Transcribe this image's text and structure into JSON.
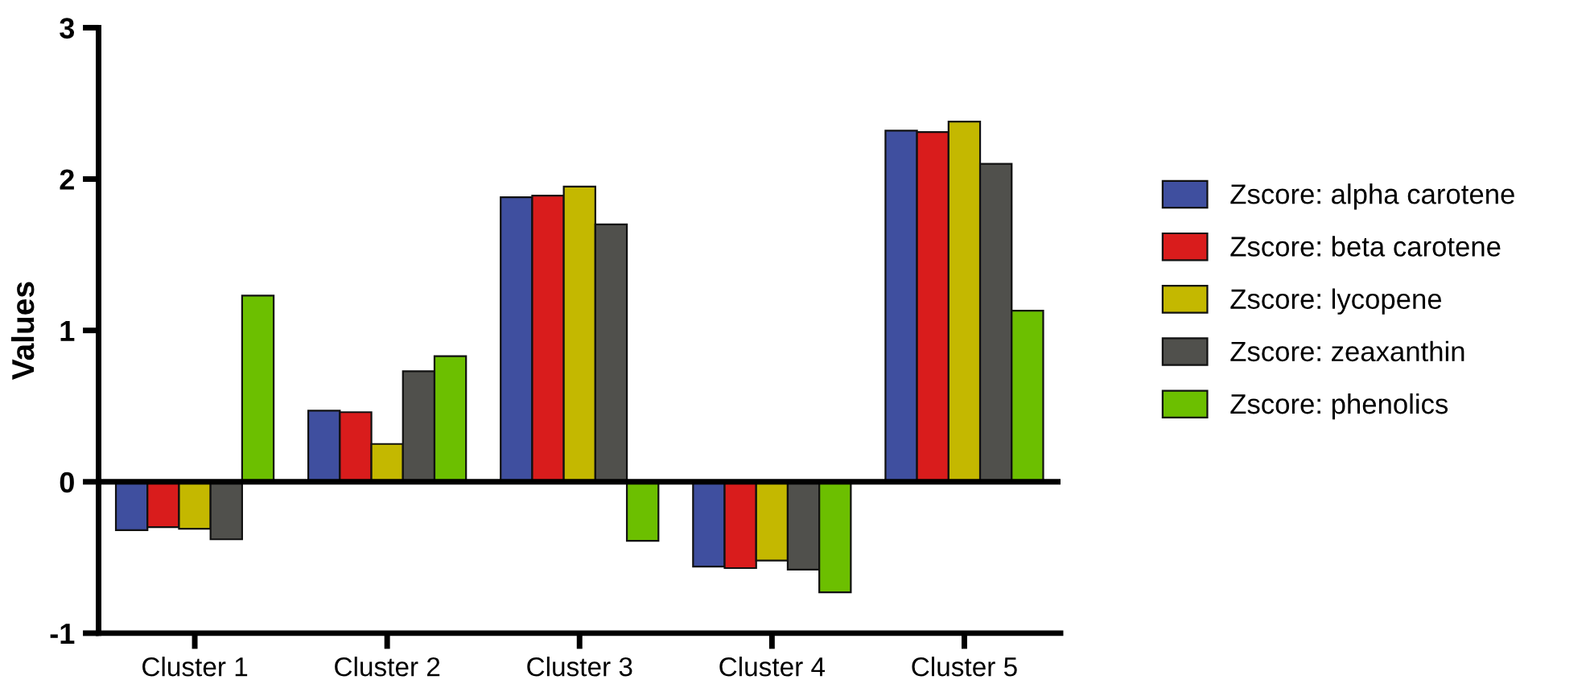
{
  "chart_data": {
    "type": "bar",
    "ylabel": "Values",
    "categories": [
      "Cluster 1",
      "Cluster 2",
      "Cluster 3",
      "Cluster 4",
      "Cluster 5"
    ],
    "series": [
      {
        "name": "Zscore: alpha carotene",
        "color": "#3f4f9f",
        "values": [
          -0.32,
          0.47,
          1.88,
          -0.56,
          2.32
        ]
      },
      {
        "name": "Zscore: beta carotene",
        "color": "#d91c1c",
        "values": [
          -0.3,
          0.46,
          1.89,
          -0.57,
          2.31
        ]
      },
      {
        "name": "Zscore: lycopene",
        "color": "#c4b800",
        "values": [
          -0.31,
          0.25,
          1.95,
          -0.52,
          2.38
        ]
      },
      {
        "name": "Zscore: zeaxanthin",
        "color": "#50504c",
        "values": [
          -0.38,
          0.73,
          1.7,
          -0.58,
          2.1
        ]
      },
      {
        "name": "Zscore: phenolics",
        "color": "#6cbf00",
        "values": [
          1.23,
          0.83,
          -0.39,
          -0.73,
          1.13
        ]
      }
    ],
    "ylim": [
      -1,
      3
    ],
    "yticks": [
      -1,
      0,
      1,
      2,
      3
    ],
    "ref_lines": [
      {
        "axis": "y",
        "value": 0,
        "color": "#000000"
      }
    ],
    "grid": false,
    "legend": "right"
  }
}
